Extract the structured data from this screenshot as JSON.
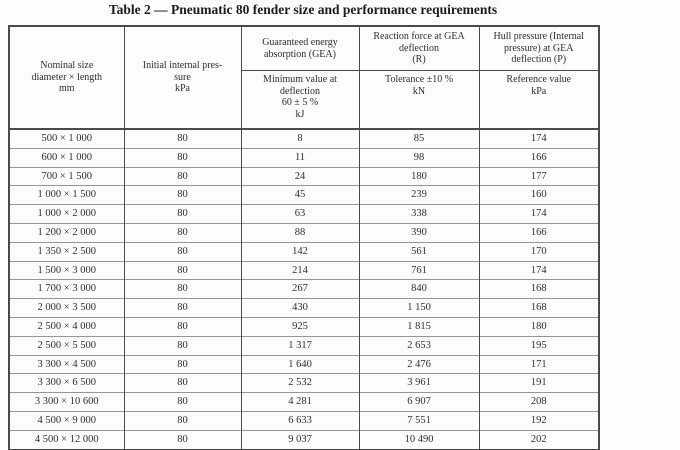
{
  "title": "Table 2 — Pneumatic 80 fender size and performance requirements",
  "table": {
    "header": {
      "nominal_size": "Nominal size\ndiameter × length\nmm",
      "initial_pressure": "Initial internal pres-\nsure\nkPa",
      "gea": "Guaranteed energy\nabsorption (GEA)",
      "gea_sub": "Minimum value at\ndeflection\n60 ± 5 %\nkJ",
      "reaction_force": "Reaction force at GEA\ndeflection\n(R)",
      "reaction_sub": "Tolerance ±10 %\nkN",
      "hull_pressure": "Hull pressure (Internal\npressure) at GEA\ndeflection (P)",
      "hull_sub": "Reference value\nkPa"
    },
    "rows": [
      [
        "500 × 1 000",
        "80",
        "8",
        "85",
        "174"
      ],
      [
        "600 × 1 000",
        "80",
        "11",
        "98",
        "166"
      ],
      [
        "700 × 1 500",
        "80",
        "24",
        "180",
        "177"
      ],
      [
        "1 000 × 1 500",
        "80",
        "45",
        "239",
        "160"
      ],
      [
        "1 000 × 2 000",
        "80",
        "63",
        "338",
        "174"
      ],
      [
        "1 200 × 2 000",
        "80",
        "88",
        "390",
        "166"
      ],
      [
        "1 350 × 2 500",
        "80",
        "142",
        "561",
        "170"
      ],
      [
        "1 500 × 3 000",
        "80",
        "214",
        "761",
        "174"
      ],
      [
        "1 700 × 3 000",
        "80",
        "267",
        "840",
        "168"
      ],
      [
        "2 000 × 3 500",
        "80",
        "430",
        "1 150",
        "168"
      ],
      [
        "2 500 × 4 000",
        "80",
        "925",
        "1 815",
        "180"
      ],
      [
        "2 500 × 5 500",
        "80",
        "1 317",
        "2 653",
        "195"
      ],
      [
        "3 300 × 4 500",
        "80",
        "1 640",
        "2 476",
        "171"
      ],
      [
        "3 300 × 6 500",
        "80",
        "2 532",
        "3 961",
        "191"
      ],
      [
        "3 300 × 10 600",
        "80",
        "4 281",
        "6 907",
        "208"
      ],
      [
        "4 500 × 9 000",
        "80",
        "6 633",
        "7 551",
        "192"
      ],
      [
        "4 500 × 12 000",
        "80",
        "9 037",
        "10 490",
        "202"
      ]
    ],
    "colors": {
      "outer_border": "#4a4a4a",
      "row_line": "#969696",
      "text": "#2e2e2e",
      "background": "#fcfcfc"
    }
  }
}
